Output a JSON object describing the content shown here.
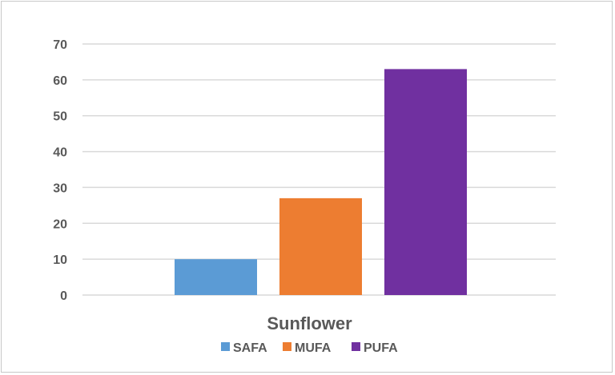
{
  "chart_data": {
    "type": "bar",
    "title": "",
    "xlabel": "",
    "ylabel": "",
    "categories": [
      "Sunflower"
    ],
    "series": [
      {
        "name": "SAFA",
        "values": [
          10
        ],
        "color": "#5b9bd5"
      },
      {
        "name": "MUFA",
        "values": [
          27
        ],
        "color": "#ed7d31"
      },
      {
        "name": "PUFA",
        "values": [
          63
        ],
        "color": "#7030a0"
      }
    ],
    "ylim": [
      0,
      70
    ],
    "yticks": [
      0,
      10,
      20,
      30,
      40,
      50,
      60,
      70
    ],
    "ytick_labels": [
      "0",
      "10",
      "20",
      "30",
      "40",
      "50",
      "60",
      "70"
    ],
    "grid": true,
    "legend": "bottom",
    "colors": {
      "gridline": "#d9d9d9",
      "text": "#595959",
      "border": "#c8c8c8"
    }
  }
}
